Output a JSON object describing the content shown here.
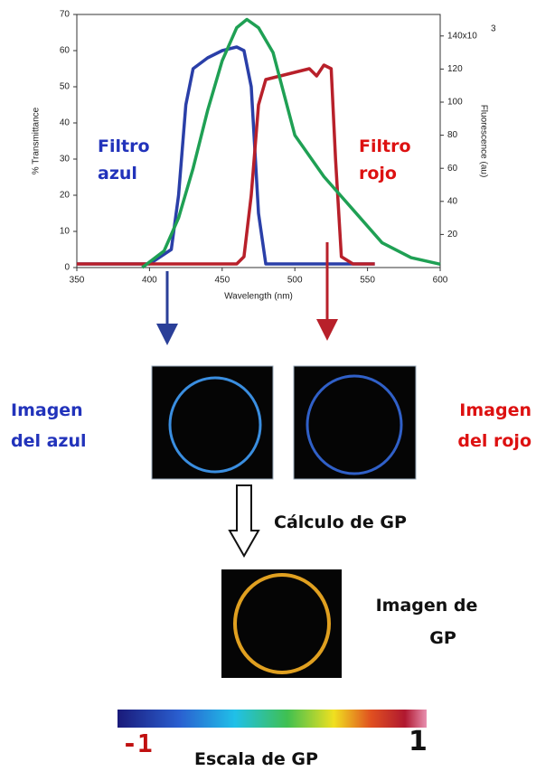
{
  "chart_data": {
    "type": "line",
    "xlabel": "Wavelength (nm)",
    "ylabel": "% Transmittance",
    "y2label": "Fluorescence (au)",
    "xlim": [
      350,
      600
    ],
    "xticks": [
      350,
      400,
      450,
      500,
      550,
      600
    ],
    "ylim": [
      0,
      70
    ],
    "yticks": [
      0,
      10,
      20,
      30,
      40,
      50,
      60,
      70
    ],
    "y2lim": [
      0,
      153
    ],
    "y2ticks": [
      20,
      40,
      60,
      80,
      100,
      120,
      {
        "value": 140,
        "label": "140x10"
      }
    ],
    "y2tick_exponent": "3",
    "series": [
      {
        "color": "#2a3fa8",
        "x": [
          350,
          400,
          415,
          420,
          425,
          430,
          440,
          450,
          460,
          465,
          470,
          475,
          480,
          490,
          520,
          555
        ],
        "values": [
          1,
          1,
          5,
          20,
          45,
          55,
          58,
          60,
          61,
          60,
          50,
          15,
          1,
          1,
          1,
          1
        ]
      },
      {
        "color": "#b8202a",
        "x": [
          350,
          460,
          465,
          470,
          475,
          480,
          490,
          500,
          510,
          515,
          520,
          525,
          528,
          532,
          540,
          555
        ],
        "values": [
          1,
          1,
          3,
          20,
          45,
          52,
          53,
          54,
          55,
          53,
          56,
          55,
          30,
          3,
          1,
          1
        ]
      },
      {
        "color": "#1fa054",
        "axis": "y2",
        "x": [
          395,
          410,
          420,
          430,
          440,
          450,
          460,
          467,
          475,
          485,
          500,
          520,
          540,
          560,
          580,
          600
        ],
        "values": [
          0,
          10,
          30,
          60,
          95,
          125,
          145,
          150,
          145,
          130,
          80,
          55,
          35,
          15,
          6,
          2
        ]
      }
    ]
  },
  "labels": {
    "filter_blue": [
      "Filtro",
      "azul"
    ],
    "filter_red": [
      "Filtro",
      "rojo"
    ],
    "image_blue": [
      "Imagen",
      "del azul"
    ],
    "image_red": [
      "Imagen",
      "del rojo"
    ],
    "calc": "Cálculo de GP",
    "image_gp": [
      "Imagen de",
      "GP"
    ],
    "scale_min": "-1",
    "scale_max": "1",
    "scale_title": "Escala de GP"
  }
}
